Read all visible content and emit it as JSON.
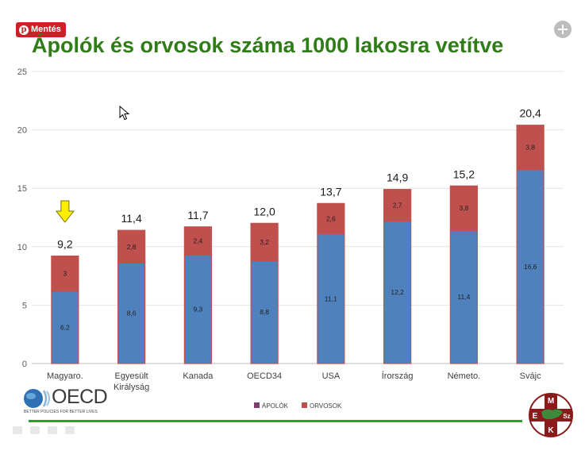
{
  "pin": {
    "label": "Mentés",
    "glyph": "p"
  },
  "title": "Ápolók és orvosok száma 1000 lakosra vetítve",
  "chart_data": {
    "type": "bar",
    "stacked": true,
    "title": "Ápolók és orvosok száma 1000 lakosra vetítve",
    "categories": [
      [
        "Magyaro."
      ],
      [
        "Egyesült",
        "Királyság"
      ],
      [
        "Kanada"
      ],
      [
        "OECD34"
      ],
      [
        "USA"
      ],
      [
        "Írország"
      ],
      [
        "Németo."
      ],
      [
        "Svájc"
      ]
    ],
    "series": [
      {
        "name": "ÁPOLÓK",
        "color": "#4f81bd",
        "values": [
          6.2,
          8.6,
          9.3,
          8.8,
          11.1,
          12.2,
          11.4,
          16.6
        ],
        "labels": [
          "6,2",
          "8,6",
          "9,3",
          "8,8",
          "11,1",
          "12,2",
          "11,4",
          "16,6"
        ]
      },
      {
        "name": "ORVOSOK",
        "color": "#c0504d",
        "values": [
          3,
          2.8,
          2.4,
          3.2,
          2.6,
          2.7,
          3.8,
          3.8
        ],
        "labels": [
          "3",
          "2,8",
          "2,4",
          "3,2",
          "2,6",
          "2,7",
          "3,8",
          "3,8"
        ]
      }
    ],
    "totals": [
      "9,2",
      "11,4",
      "11,7",
      "12,0",
      "13,7",
      "14,9",
      "15,2",
      "20,4"
    ],
    "legend_colors": [
      "#7e3f6f",
      "#c0504d"
    ],
    "y_ticks": [
      0,
      5,
      10,
      15,
      20,
      25
    ],
    "ylim": [
      0,
      25
    ],
    "grid": true,
    "legend_position": "bottom",
    "highlight_arrow": {
      "category_index": 0,
      "color": "#ffee00"
    }
  },
  "footer": {
    "oecd_word": "OECD",
    "oecd_tagline": "BETTER POLICIES FOR BETTER LIVES",
    "mesz_letters": {
      "top": "M",
      "left": "E",
      "right": "Sz",
      "bottom": "K"
    },
    "rule_color": "#2aa12a"
  }
}
